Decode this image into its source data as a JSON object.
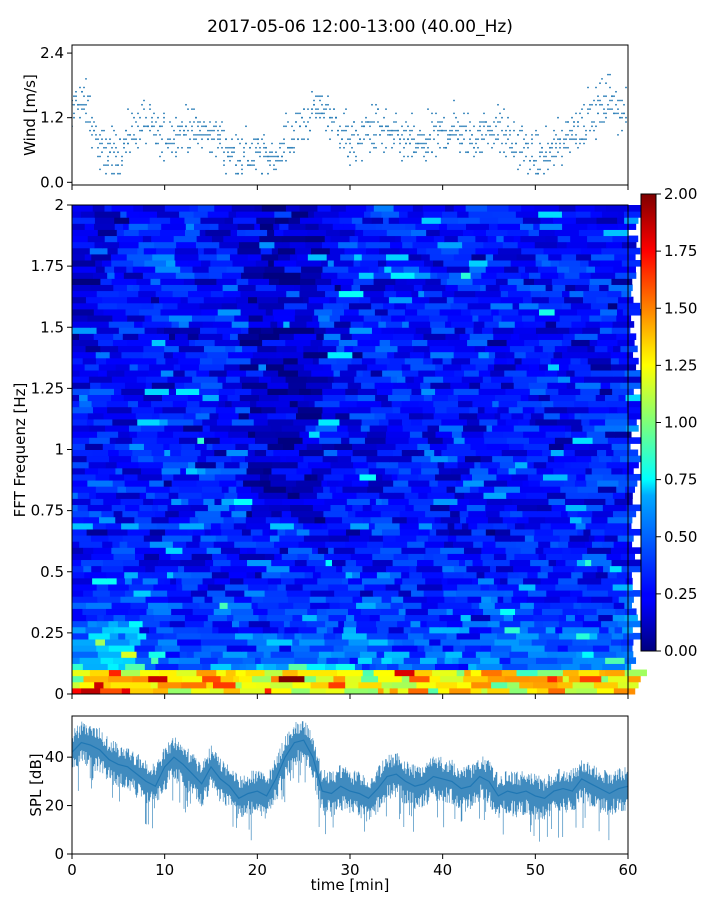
{
  "title": "2017-05-06 12:00-13:00 (40.00_Hz)",
  "chart_data": [
    {
      "id": "wind",
      "type": "scatter",
      "ylabel": "Wind [m/s]",
      "xlim": [
        0,
        60
      ],
      "ylim": [
        -0.05,
        2.55
      ],
      "yticks": [
        0.0,
        1.2,
        2.4
      ],
      "ytick_labels": [
        "0.0",
        "1.2",
        "2.4"
      ],
      "marker_color": "#1f77b4",
      "trend": {
        "x": [
          0,
          1,
          2,
          3,
          4,
          5,
          6,
          7,
          8,
          9,
          10,
          11,
          12,
          13,
          14,
          15,
          16,
          17,
          18,
          19,
          20,
          21,
          22,
          23,
          24,
          25,
          26,
          27,
          28,
          29,
          30,
          31,
          32,
          33,
          34,
          35,
          36,
          37,
          38,
          39,
          40,
          41,
          42,
          43,
          44,
          45,
          46,
          47,
          48,
          49,
          50,
          51,
          52,
          53,
          54,
          55,
          56,
          57,
          58,
          59,
          60
        ],
        "y": [
          1.3,
          1.6,
          1.2,
          0.6,
          0.5,
          0.6,
          0.8,
          1.0,
          1.1,
          0.9,
          0.8,
          0.9,
          1.0,
          1.0,
          0.9,
          0.9,
          0.8,
          0.6,
          0.5,
          0.5,
          0.5,
          0.5,
          0.5,
          0.7,
          0.9,
          1.1,
          1.3,
          1.4,
          1.2,
          1.0,
          0.7,
          0.8,
          1.0,
          1.0,
          0.9,
          0.8,
          0.8,
          0.7,
          0.7,
          0.8,
          0.9,
          1.0,
          0.9,
          0.8,
          0.9,
          1.0,
          1.0,
          0.8,
          0.7,
          0.6,
          0.4,
          0.5,
          0.6,
          0.8,
          1.0,
          1.1,
          1.2,
          1.4,
          1.6,
          1.4,
          1.1
        ]
      }
    },
    {
      "id": "spectrogram",
      "type": "heatmap",
      "ylabel": "FFT Frequenz [Hz]",
      "xlim": [
        0,
        60
      ],
      "ylim": [
        0,
        2
      ],
      "yticks": [
        0,
        0.25,
        0.5,
        0.75,
        1,
        1.25,
        1.5,
        1.75,
        2
      ],
      "ytick_labels": [
        "0",
        "0.25",
        "0.5",
        "0.75",
        "1",
        "1.25",
        "1.5",
        "1.75",
        "2"
      ],
      "colormap": "jet",
      "colorbar": {
        "min": 0.0,
        "max": 2.0,
        "ticks": [
          0.0,
          0.25,
          0.5,
          0.75,
          1.0,
          1.25,
          1.5,
          1.75,
          2.0
        ],
        "tick_labels": [
          "0.00",
          "0.25",
          "0.50",
          "0.75",
          "1.00",
          "1.25",
          "1.50",
          "1.75",
          "2.00"
        ]
      }
    },
    {
      "id": "spl",
      "type": "line",
      "ylabel": "SPL [dB]",
      "xlabel": "time [min]",
      "xlim": [
        0,
        60
      ],
      "ylim": [
        0,
        57
      ],
      "xticks": [
        0,
        10,
        20,
        30,
        40,
        50,
        60
      ],
      "xtick_labels": [
        "0",
        "10",
        "20",
        "30",
        "40",
        "50",
        "60"
      ],
      "yticks": [
        0,
        20,
        40
      ],
      "ytick_labels": [
        "0",
        "20",
        "40"
      ],
      "line_color": "#1f77b4",
      "series": [
        {
          "x": [
            0,
            1,
            2,
            3,
            4,
            5,
            6,
            7,
            8,
            9,
            10,
            11,
            12,
            13,
            14,
            15,
            16,
            17,
            18,
            19,
            20,
            21,
            22,
            23,
            24,
            25,
            26,
            27,
            28,
            29,
            30,
            31,
            32,
            33,
            34,
            35,
            36,
            37,
            38,
            39,
            40,
            41,
            42,
            43,
            44,
            45,
            46,
            47,
            48,
            49,
            50,
            51,
            52,
            53,
            54,
            55,
            56,
            57,
            58,
            59,
            60
          ],
          "y": [
            42,
            46,
            45,
            43,
            39,
            37,
            36,
            33,
            30,
            28,
            36,
            40,
            37,
            33,
            29,
            36,
            31,
            28,
            23,
            25,
            26,
            24,
            31,
            40,
            46,
            47,
            40,
            26,
            25,
            28,
            26,
            25,
            23,
            27,
            32,
            33,
            30,
            28,
            29,
            32,
            31,
            30,
            27,
            28,
            32,
            30,
            24,
            26,
            25,
            26,
            24,
            23,
            26,
            27,
            26,
            31,
            29,
            27,
            25,
            27,
            28
          ]
        }
      ]
    }
  ]
}
